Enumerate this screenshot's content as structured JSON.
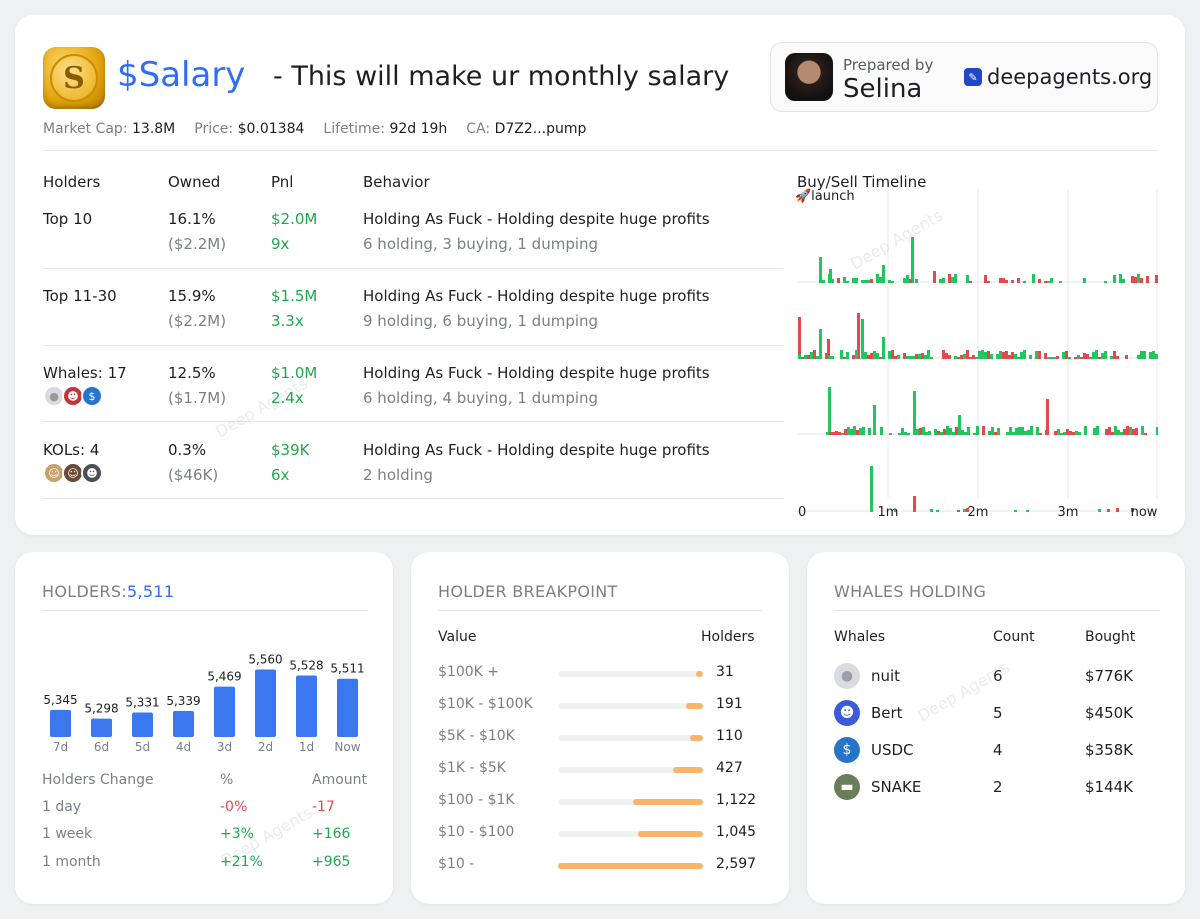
{
  "header": {
    "coin_symbol": "S",
    "ticker": "$Salary",
    "tagline": "- This will make ur monthly salary",
    "prepared_label": "Prepared by",
    "prepared_name": "Selina",
    "brand": "deepagents.org"
  },
  "meta": [
    {
      "label": "Market Cap:",
      "value": "13.8M"
    },
    {
      "label": "Price:",
      "value": "$0.01384"
    },
    {
      "label": "Lifetime:",
      "value": "92d 19h"
    },
    {
      "label": "CA:",
      "value": "D7Z2...pump"
    }
  ],
  "table": {
    "headers": [
      "Holders",
      "Owned",
      "Pnl",
      "Behavior",
      "Buy/Sell Timeline"
    ],
    "launch_label": "🚀launch",
    "rows": [
      {
        "name": "Top 10",
        "owned": "16.1%",
        "owned_usd": "($2.2M)",
        "pnl": "$2.0M",
        "mult": "9x",
        "behavior": "Holding As Fuck - Holding despite huge profits",
        "detail": "6 holding, 3 buying, 1 dumping"
      },
      {
        "name": "Top 11-30",
        "owned": "15.9%",
        "owned_usd": "($2.2M)",
        "pnl": "$1.5M",
        "mult": "3.3x",
        "behavior": "Holding As Fuck - Holding despite huge profits",
        "detail": "9 holding, 6 buying, 1 dumping"
      },
      {
        "name": "Whales: 17",
        "owned": "12.5%",
        "owned_usd": "($1.7M)",
        "pnl": "$1.0M",
        "mult": "2.4x",
        "behavior": "Holding As Fuck - Holding despite huge profits",
        "detail": "6 holding, 4 buying, 1 dumping"
      },
      {
        "name": "KOLs: 4",
        "owned": "0.3%",
        "owned_usd": "($46K)",
        "pnl": "$39K",
        "mult": "6x",
        "behavior": "Holding As Fuck - Holding despite huge profits",
        "detail": "2 holding"
      }
    ],
    "timeline_ticks": [
      "0",
      "1m",
      "2m",
      "3m",
      "now"
    ]
  },
  "holders": {
    "title": "HOLDERS:",
    "count": "5,511",
    "chart_data": {
      "type": "bar",
      "categories": [
        "7d",
        "6d",
        "5d",
        "4d",
        "3d",
        "2d",
        "1d",
        "Now"
      ],
      "values": [
        5345,
        5298,
        5331,
        5339,
        5469,
        5560,
        5528,
        5511
      ],
      "labels": [
        "5,345",
        "5,298",
        "5,331",
        "5,339",
        "5,469",
        "5,560",
        "5,528",
        "5,511"
      ],
      "title": "HOLDERS:5,511",
      "color": "#3b78f0"
    },
    "change_headers": [
      "Holders Change",
      "%",
      "Amount"
    ],
    "changes": [
      {
        "period": "1 day",
        "pct": "-0%",
        "amount": "-17",
        "dir": "red"
      },
      {
        "period": "1 week",
        "pct": "+3%",
        "amount": "+166",
        "dir": "green"
      },
      {
        "period": "1 month",
        "pct": "+21%",
        "amount": "+965",
        "dir": "green"
      }
    ]
  },
  "breakpoint": {
    "title": "HOLDER BREAKPOINT",
    "headers": [
      "Value",
      "Holders"
    ],
    "rows": [
      {
        "label": "$100K +",
        "count": "31",
        "fraction": 0.05
      },
      {
        "label": "$10K - $100K",
        "count": "191",
        "fraction": 0.12
      },
      {
        "label": "$5K - $10K",
        "count": "110",
        "fraction": 0.09
      },
      {
        "label": "$1K - $5K",
        "count": "427",
        "fraction": 0.21
      },
      {
        "label": "$100 - $1K",
        "count": "1,122",
        "fraction": 0.48
      },
      {
        "label": "$10 - $100",
        "count": "1,045",
        "fraction": 0.45
      },
      {
        "label": "$10 -",
        "count": "2,597",
        "fraction": 1.0
      }
    ]
  },
  "whales": {
    "title": "WHALES HOLDING",
    "headers": [
      "Whales",
      "Count",
      "Bought"
    ],
    "rows": [
      {
        "name": "nuit",
        "count": "6",
        "bought": "$776K",
        "icon": "moon-icon",
        "color": "#d9dbe0"
      },
      {
        "name": "Bert",
        "count": "5",
        "bought": "$450K",
        "icon": "bert-icon",
        "color": "#3b5bd8"
      },
      {
        "name": "USDC",
        "count": "4",
        "bought": "$358K",
        "icon": "usdc-icon",
        "color": "#2775ca"
      },
      {
        "name": "SNAKE",
        "count": "2",
        "bought": "$144K",
        "icon": "snake-icon",
        "color": "#6b7c5a"
      }
    ]
  },
  "watermark_text": "Deep Agents"
}
